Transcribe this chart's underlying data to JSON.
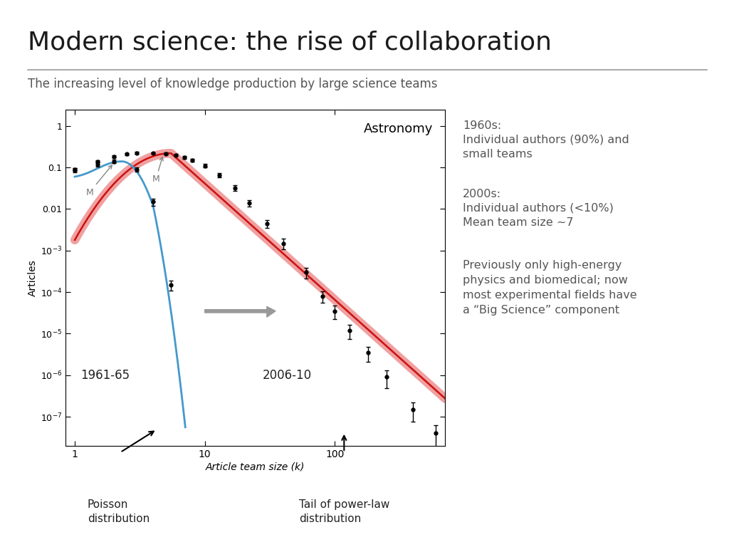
{
  "title": "Modern science: the rise of collaboration",
  "subtitle": "The increasing level of knowledge production by large science teams",
  "background_color": "#ffffff",
  "title_color": "#1a1a1a",
  "subtitle_color": "#555555",
  "annotation_color": "#555555",
  "plot_label": "Astronomy",
  "year_label_1": "1961-65",
  "year_label_2": "2006-10",
  "xlabel": "Article team size (k)",
  "ylabel": "Articles",
  "text_1960s_title": "1960s:",
  "text_1960s_body": "Individual authors (90%) and\nsmall teams",
  "text_2000s_title": "2000s:",
  "text_2000s_body": "Individual authors (<10%)\nMean team size ~7",
  "text_prev": "Previously only high-energy\nphysics and biomedical; now\nmost experimental fields have\na “Big Science” component",
  "bottom_label_left": "Poisson\ndistribution",
  "bottom_label_right": "Tail of power-law\ndistribution",
  "blue_color": "#4499cc",
  "red_color": "#cc1111",
  "pink_color": "#f0a0a0",
  "gray_color": "#888888"
}
